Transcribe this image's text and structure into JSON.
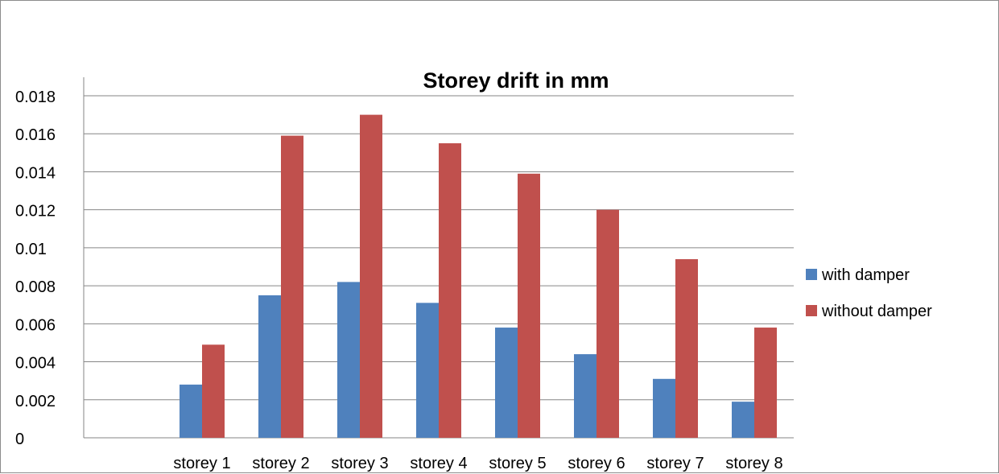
{
  "chart_data": {
    "type": "bar",
    "title": "Storey drift in mm",
    "categories": [
      "",
      "storey 1",
      "storey 2",
      "storey 3",
      "storey 4",
      "storey 5",
      "storey 6",
      "storey 7",
      "storey 8"
    ],
    "series": [
      {
        "name": "with damper",
        "color": "#4f81bd",
        "values": [
          null,
          0.0028,
          0.0075,
          0.0082,
          0.0071,
          0.0058,
          0.0044,
          0.0031,
          0.0019
        ]
      },
      {
        "name": "without damper",
        "color": "#c0504d",
        "values": [
          null,
          0.0049,
          0.0159,
          0.017,
          0.0155,
          0.0139,
          0.012,
          0.0094,
          0.0058
        ]
      }
    ],
    "yticks": [
      "0",
      "0.002",
      "0.004",
      "0.006",
      "0.008",
      "0.01",
      "0.012",
      "0.014",
      "0.016",
      "0.018"
    ],
    "ylim": [
      0,
      0.018
    ],
    "grid": true,
    "legend": "right",
    "colors": {
      "grid": "#868686",
      "axis": "#868686"
    }
  }
}
